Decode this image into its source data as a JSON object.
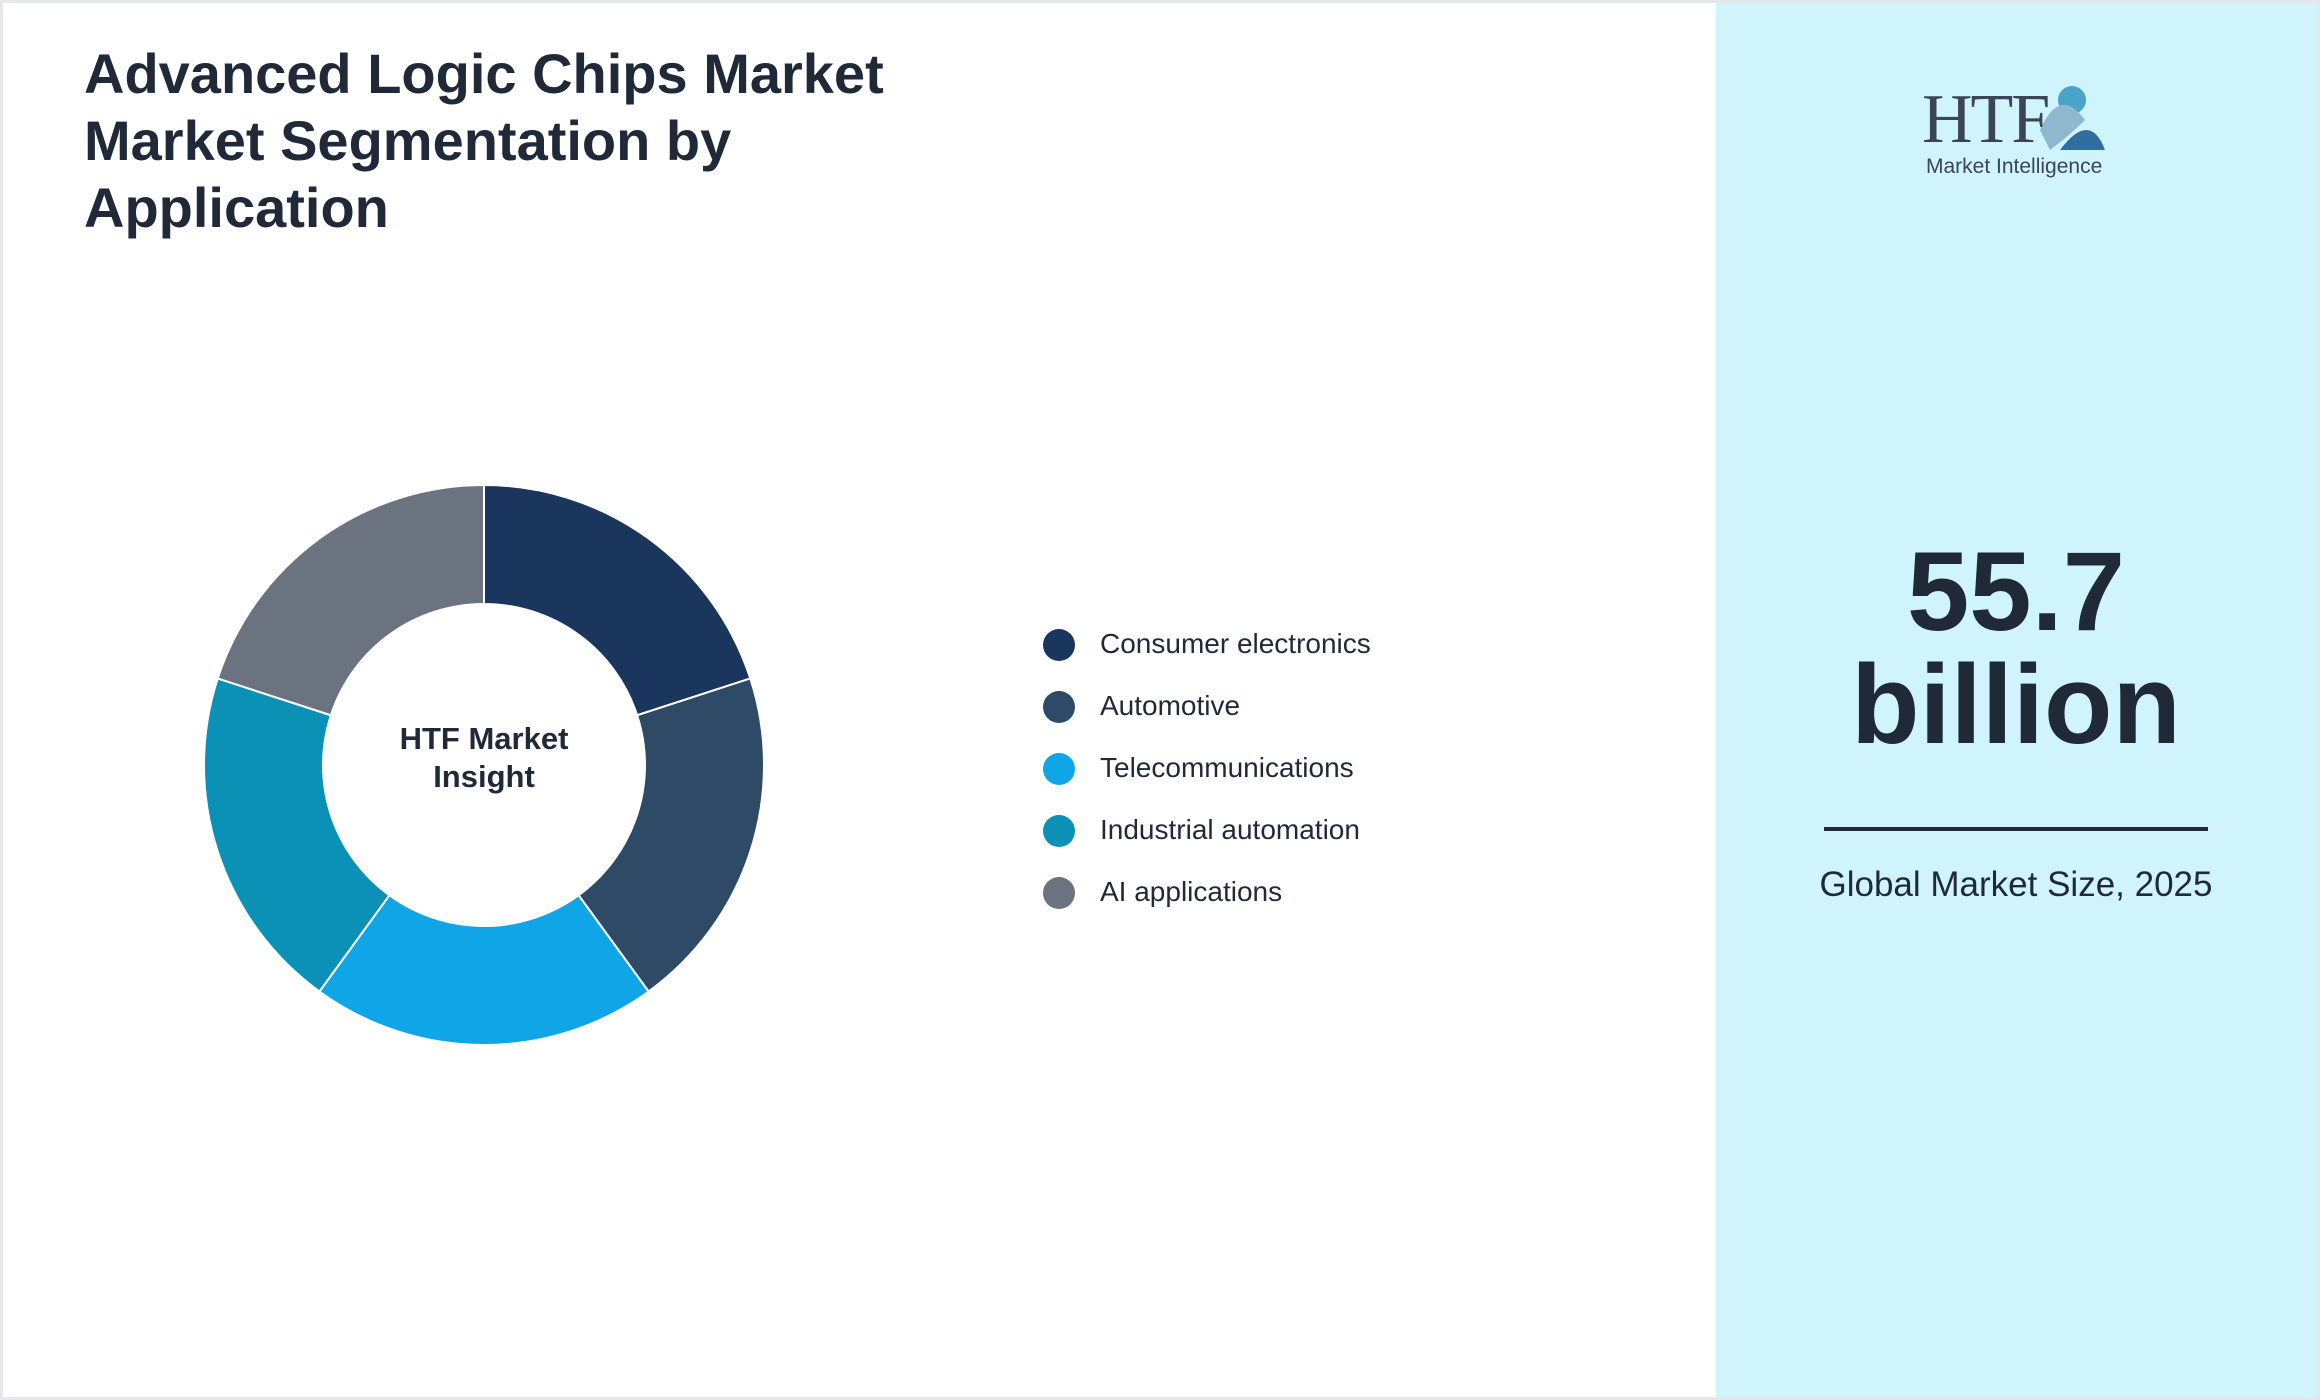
{
  "chart_data": {
    "type": "donut",
    "title": "Advanced Logic Chips Market Market Segmentation by Application",
    "center_label": "HTF Market Insight",
    "categories": [
      "Consumer electronics",
      "Automotive",
      "Telecommunications",
      "Industrial automation",
      "AI applications"
    ],
    "values": [
      20,
      20,
      20,
      20,
      20
    ],
    "colors": [
      "#1b365d",
      "#2e4a66",
      "#10a5e6",
      "#0a91b5",
      "#6b7280"
    ]
  },
  "sidebar": {
    "logo_name": "HTF",
    "logo_tagline": "Market Intelligence",
    "market_size": "55.7 billion",
    "caption": "Global Market Size, 2025"
  }
}
